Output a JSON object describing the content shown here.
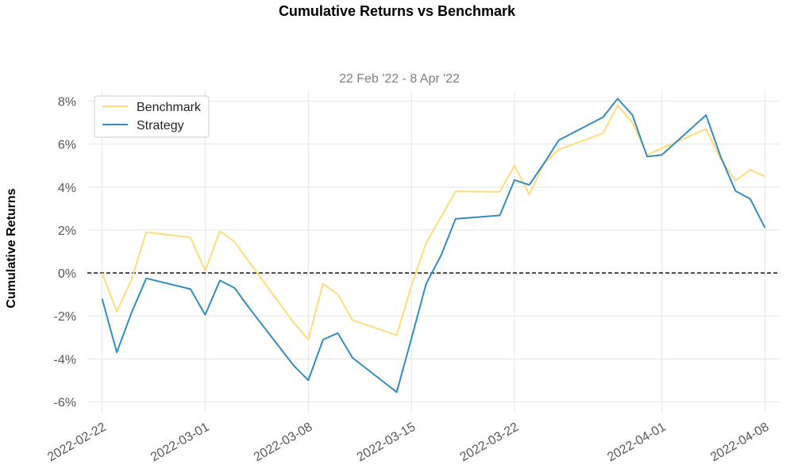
{
  "chart_data": {
    "type": "line",
    "title": "Cumulative Returns vs Benchmark",
    "subtitle": "22 Feb '22 -  8 Apr '22",
    "ylabel": "Cumulative Returns",
    "xlabel": "",
    "ylim": [
      -6.5,
      8.5
    ],
    "xlim": [
      "2022-02-21",
      "2022-04-09"
    ],
    "yticks": [
      -6,
      -4,
      -2,
      0,
      2,
      4,
      6,
      8
    ],
    "ytick_labels": [
      "-6%",
      "-4%",
      "-2%",
      "0%",
      "2%",
      "4%",
      "6%",
      "8%"
    ],
    "xticks": [
      "2022-02-22",
      "2022-03-01",
      "2022-03-08",
      "2022-03-15",
      "2022-03-22",
      "2022-04-01",
      "2022-04-08"
    ],
    "grid": true,
    "legend_position": "top-left",
    "baseline": 0,
    "series": [
      {
        "name": "Benchmark",
        "color": "#fedd78",
        "x": [
          "2022-02-22",
          "2022-02-23",
          "2022-02-24",
          "2022-02-25",
          "2022-02-28",
          "2022-03-01",
          "2022-03-02",
          "2022-03-03",
          "2022-03-04",
          "2022-03-07",
          "2022-03-08",
          "2022-03-09",
          "2022-03-10",
          "2022-03-11",
          "2022-03-14",
          "2022-03-15",
          "2022-03-16",
          "2022-03-17",
          "2022-03-18",
          "2022-03-21",
          "2022-03-22",
          "2022-03-23",
          "2022-03-24",
          "2022-03-25",
          "2022-03-28",
          "2022-03-29",
          "2022-03-30",
          "2022-03-31",
          "2022-04-01",
          "2022-04-04",
          "2022-04-05",
          "2022-04-06",
          "2022-04-07",
          "2022-04-08"
        ],
        "values": [
          0.0,
          -1.8,
          -0.3,
          1.9,
          1.65,
          0.1,
          1.95,
          1.45,
          0.5,
          -2.3,
          -3.1,
          -0.5,
          -1.0,
          -2.2,
          -2.9,
          -0.6,
          1.4,
          2.6,
          3.8,
          3.78,
          5.0,
          3.65,
          5.1,
          5.75,
          6.5,
          7.8,
          7.0,
          5.5,
          5.8,
          6.7,
          5.3,
          4.3,
          4.8,
          4.5
        ]
      },
      {
        "name": "Strategy",
        "color": "#348dc1",
        "x": [
          "2022-02-22",
          "2022-02-23",
          "2022-02-24",
          "2022-02-25",
          "2022-02-28",
          "2022-03-01",
          "2022-03-02",
          "2022-03-03",
          "2022-03-04",
          "2022-03-07",
          "2022-03-08",
          "2022-03-09",
          "2022-03-10",
          "2022-03-11",
          "2022-03-14",
          "2022-03-15",
          "2022-03-16",
          "2022-03-17",
          "2022-03-18",
          "2022-03-21",
          "2022-03-22",
          "2022-03-23",
          "2022-03-24",
          "2022-03-25",
          "2022-03-28",
          "2022-03-29",
          "2022-03-30",
          "2022-03-31",
          "2022-04-01",
          "2022-04-04",
          "2022-04-05",
          "2022-04-06",
          "2022-04-07",
          "2022-04-08"
        ],
        "values": [
          -1.2,
          -3.7,
          -1.85,
          -0.25,
          -0.75,
          -1.95,
          -0.35,
          -0.7,
          -1.65,
          -4.3,
          -5.0,
          -3.1,
          -2.8,
          -3.95,
          -5.55,
          -3.05,
          -0.5,
          0.8,
          2.52,
          2.68,
          4.33,
          4.1,
          5.1,
          6.18,
          7.25,
          8.12,
          7.35,
          5.42,
          5.5,
          7.35,
          5.4,
          3.82,
          3.45,
          2.1
        ]
      }
    ]
  }
}
